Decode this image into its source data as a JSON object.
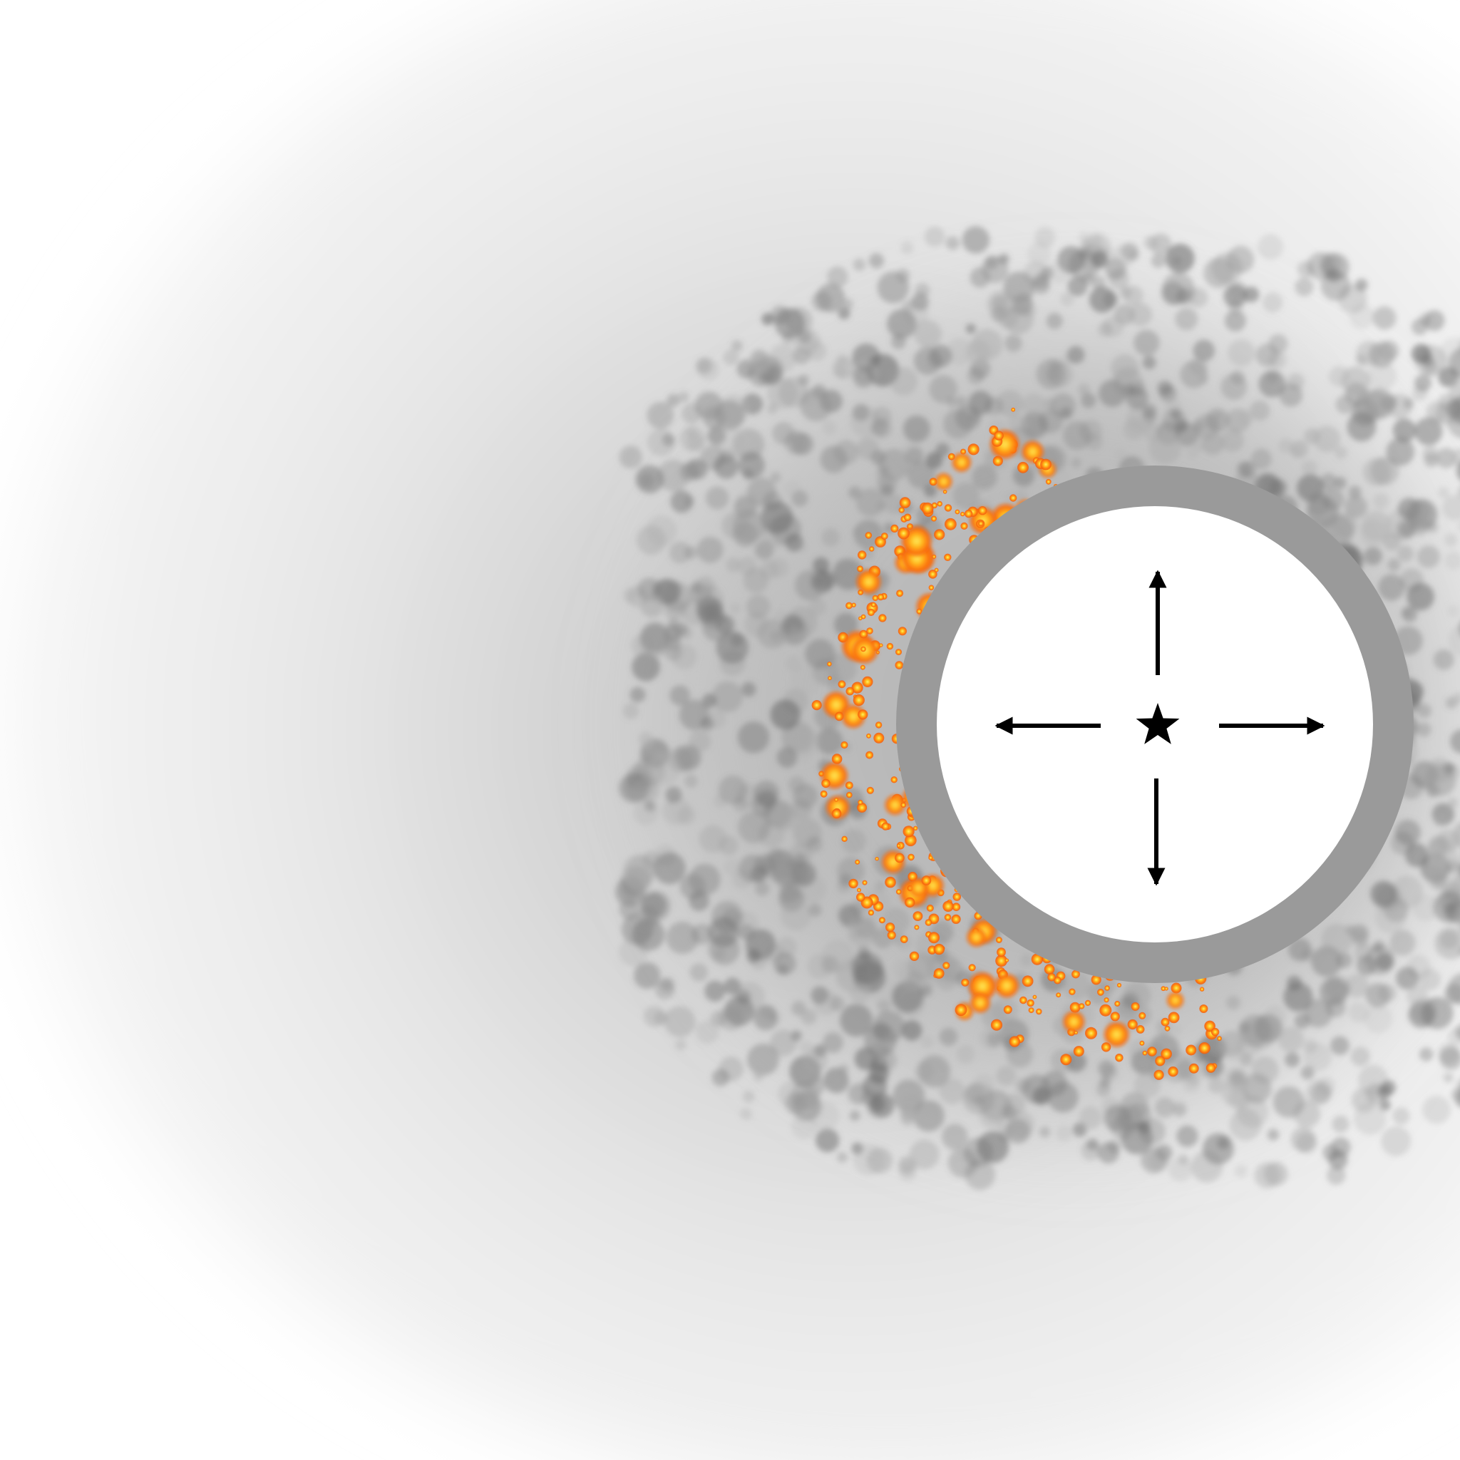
{
  "colors": {
    "background": "#ffffff",
    "haze_light": "#ececec",
    "haze_dark": "#c4c4c4",
    "mottle": "#7a7a7a",
    "ring": "#9a9a9a",
    "disc": "#ffffff",
    "symbol": "#000000",
    "glow_outer": "#f05a0a",
    "glow_mid": "#ff9b12",
    "glow_core": "#ffe34a"
  },
  "icons": {
    "center": "star-icon",
    "directions": [
      "arrow-up-icon",
      "arrow-down-icon",
      "arrow-left-icon",
      "arrow-right-icon"
    ]
  }
}
